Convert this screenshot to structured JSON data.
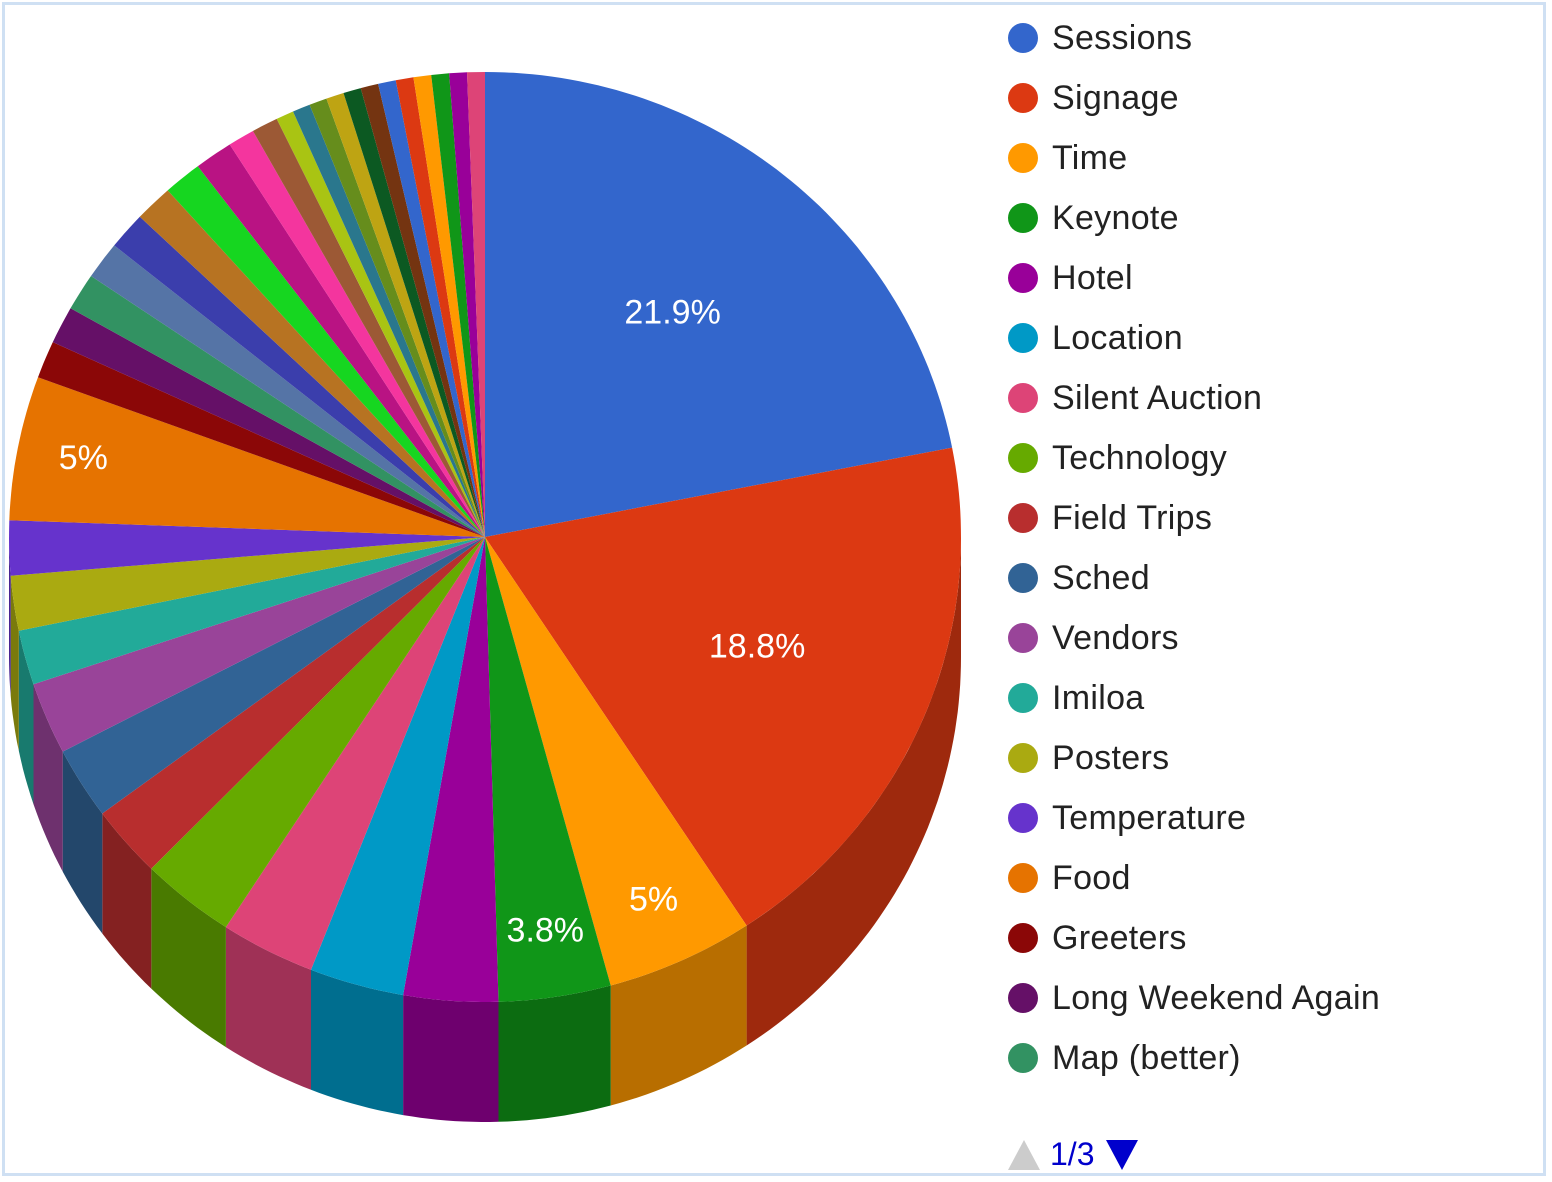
{
  "chart_data": {
    "type": "pie",
    "categories": [
      "Sessions",
      "Signage",
      "Time",
      "Keynote",
      "Hotel",
      "Location",
      "Silent Auction",
      "Technology",
      "Field Trips",
      "Sched",
      "Vendors",
      "Imiloa",
      "Posters",
      "Temperature",
      "Food",
      "Greeters",
      "Long Weekend Again",
      "Map (better)",
      "",
      "",
      "",
      "",
      "",
      "",
      "",
      "",
      "",
      "",
      "",
      "",
      "",
      "",
      "",
      "",
      "",
      "",
      ""
    ],
    "values": [
      21.9,
      18.8,
      5.0,
      3.8,
      3.2,
      3.2,
      3.2,
      3.2,
      2.5,
      2.5,
      2.5,
      1.9,
      1.9,
      1.9,
      5.0,
      1.3,
      1.3,
      1.3,
      1.3,
      1.3,
      1.3,
      1.3,
      1.3,
      0.9,
      0.9,
      0.6,
      0.6,
      0.6,
      0.6,
      0.6,
      0.6,
      0.6,
      0.6,
      0.6,
      0.6,
      0.6,
      0.6
    ],
    "colors": [
      "#3366cc",
      "#dc3912",
      "#ff9900",
      "#109618",
      "#990099",
      "#0099c6",
      "#dd4477",
      "#66aa00",
      "#b82e2e",
      "#316395",
      "#994499",
      "#22aa99",
      "#aaaa11",
      "#6633cc",
      "#e67300",
      "#8b0707",
      "#651067",
      "#329262",
      "#5574a6",
      "#3b3eac",
      "#b77322",
      "#16d620",
      "#b91383",
      "#f4359e",
      "#9c5935",
      "#a9c413",
      "#2a778d",
      "#668d1c",
      "#bea413",
      "#0c5922",
      "#743411",
      "#3366cc",
      "#dc3912",
      "#ff9900",
      "#109618",
      "#990099",
      "#dd4477"
    ],
    "data_labels": {
      "0": "21.9%",
      "1": "18.8%",
      "2": "5%",
      "3": "3.8%",
      "14": "5%"
    },
    "legend_placement": "right",
    "style": "3d"
  },
  "legend": {
    "items": [
      "Sessions",
      "Signage",
      "Time",
      "Keynote",
      "Hotel",
      "Location",
      "Silent Auction",
      "Technology",
      "Field Trips",
      "Sched",
      "Vendors",
      "Imiloa",
      "Posters",
      "Temperature",
      "Food",
      "Greeters",
      "Long Weekend Again",
      "Map (better)"
    ]
  },
  "pager": {
    "text": "1/3"
  }
}
